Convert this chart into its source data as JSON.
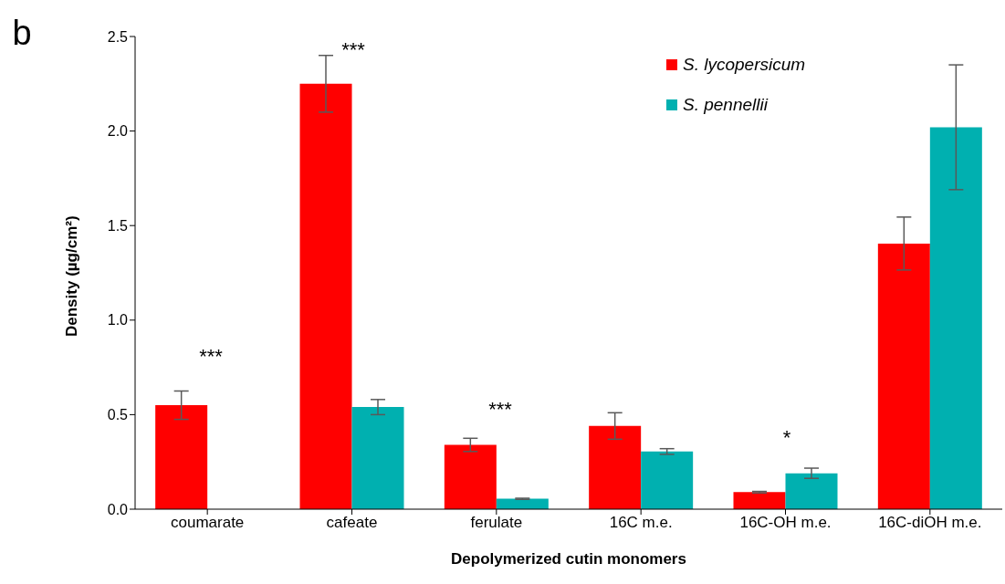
{
  "chart_data": {
    "type": "bar",
    "xlabel": "Depolymerized cutin monomers",
    "ylabel": "Density (µg/cm²)",
    "categories": [
      "coumarate",
      "cafeate",
      "ferulate",
      "16C m.e.",
      "16C-OH m.e.",
      "16C-diOH m.e."
    ],
    "series": [
      {
        "name": "S. lycopersicum",
        "color": "#ff0000",
        "values": [
          0.55,
          2.25,
          0.34,
          0.44,
          0.09,
          1.405
        ],
        "errors": [
          0.075,
          0.15,
          0.035,
          0.07,
          0.004,
          0.14
        ]
      },
      {
        "name": "S. pennellii",
        "color": "#00b0b0",
        "values": [
          null,
          0.54,
          0.055,
          0.305,
          0.19,
          2.02
        ],
        "errors": [
          null,
          0.04,
          0.003,
          0.015,
          0.027,
          0.33
        ]
      }
    ],
    "ylim": [
      0,
      2.5
    ],
    "yticks": [
      {
        "value": 0,
        "label": "0.0"
      },
      {
        "value": 0.5,
        "label": "0.5"
      },
      {
        "value": 1,
        "label": "1.0"
      },
      {
        "value": 1.5,
        "label": "1.5"
      },
      {
        "value": 2,
        "label": "2.0"
      },
      {
        "value": 2.5,
        "label": "2.5"
      }
    ],
    "legend": "top right",
    "grid": false,
    "annotations": [
      "b",
      "***",
      "***",
      "***",
      "*"
    ]
  }
}
